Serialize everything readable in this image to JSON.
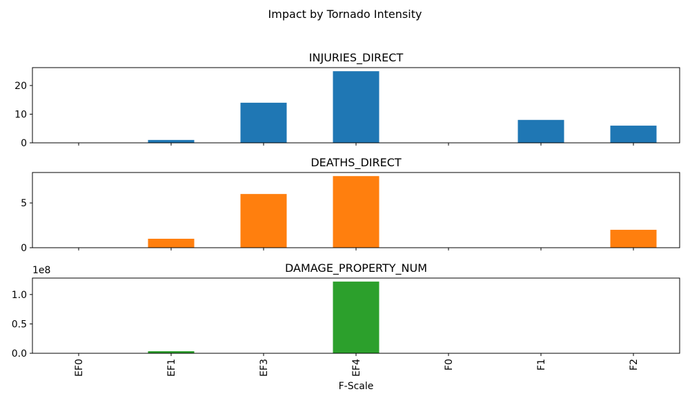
{
  "chart_data": {
    "type": "bar",
    "title": "Impact by Tornado Intensity",
    "xlabel": "F-Scale",
    "categories": [
      "EF0",
      "EF1",
      "EF3",
      "EF4",
      "F0",
      "F1",
      "F2"
    ],
    "subplots": [
      {
        "title": "INJURIES_DIRECT",
        "color": "#1f77b4",
        "values": [
          0,
          1,
          14,
          25,
          0,
          8,
          6
        ],
        "ylim": [
          0,
          26.25
        ],
        "yticks": [
          0,
          10,
          20
        ],
        "ytick_labels": [
          "0",
          "10",
          "20"
        ],
        "offset_label": ""
      },
      {
        "title": "DEATHS_DIRECT",
        "color": "#ff7f0e",
        "values": [
          0,
          1,
          6,
          8,
          0,
          0,
          2
        ],
        "ylim": [
          0,
          8.4
        ],
        "yticks": [
          0,
          5
        ],
        "ytick_labels": [
          "0",
          "5"
        ],
        "offset_label": ""
      },
      {
        "title": "DAMAGE_PROPERTY_NUM",
        "color": "#2ca02c",
        "values": [
          0,
          3500000,
          0,
          122000000,
          0,
          0,
          0
        ],
        "ylim": [
          0,
          128000000
        ],
        "yticks": [
          0,
          50000000,
          100000000
        ],
        "ytick_labels": [
          "0.0",
          "0.5",
          "1.0"
        ],
        "offset_label": "1e8"
      }
    ]
  }
}
